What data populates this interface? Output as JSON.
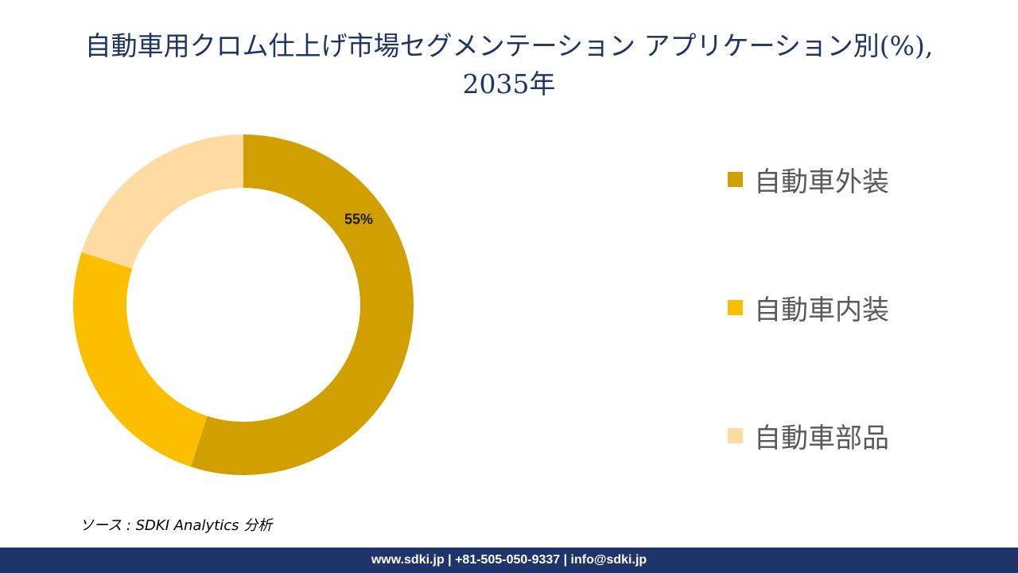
{
  "title_line1": "自動車用クロム仕上げ市場セグメンテーション アプリケーション別(%),",
  "title_line2": "2035年",
  "chart_data": {
    "type": "pie",
    "variant": "donut",
    "title": "自動車用クロム仕上げ市場セグメンテーション アプリケーション別(%), 2035年",
    "unit": "%",
    "slices": [
      {
        "label": "自動車外装",
        "value": 55,
        "color": "#d19f00",
        "data_label": "55%"
      },
      {
        "label": "自動車内装",
        "value": 25,
        "color": "#fcbf00",
        "data_label": ""
      },
      {
        "label": "自動車部品",
        "value": 20,
        "color": "#fedba1",
        "data_label": ""
      }
    ],
    "legend_position": "right"
  },
  "source_note": "ソース : SDKI Analytics 分析",
  "footer": "www.sdki.jp | +81-505-050-9337 | info@sdki.jp"
}
